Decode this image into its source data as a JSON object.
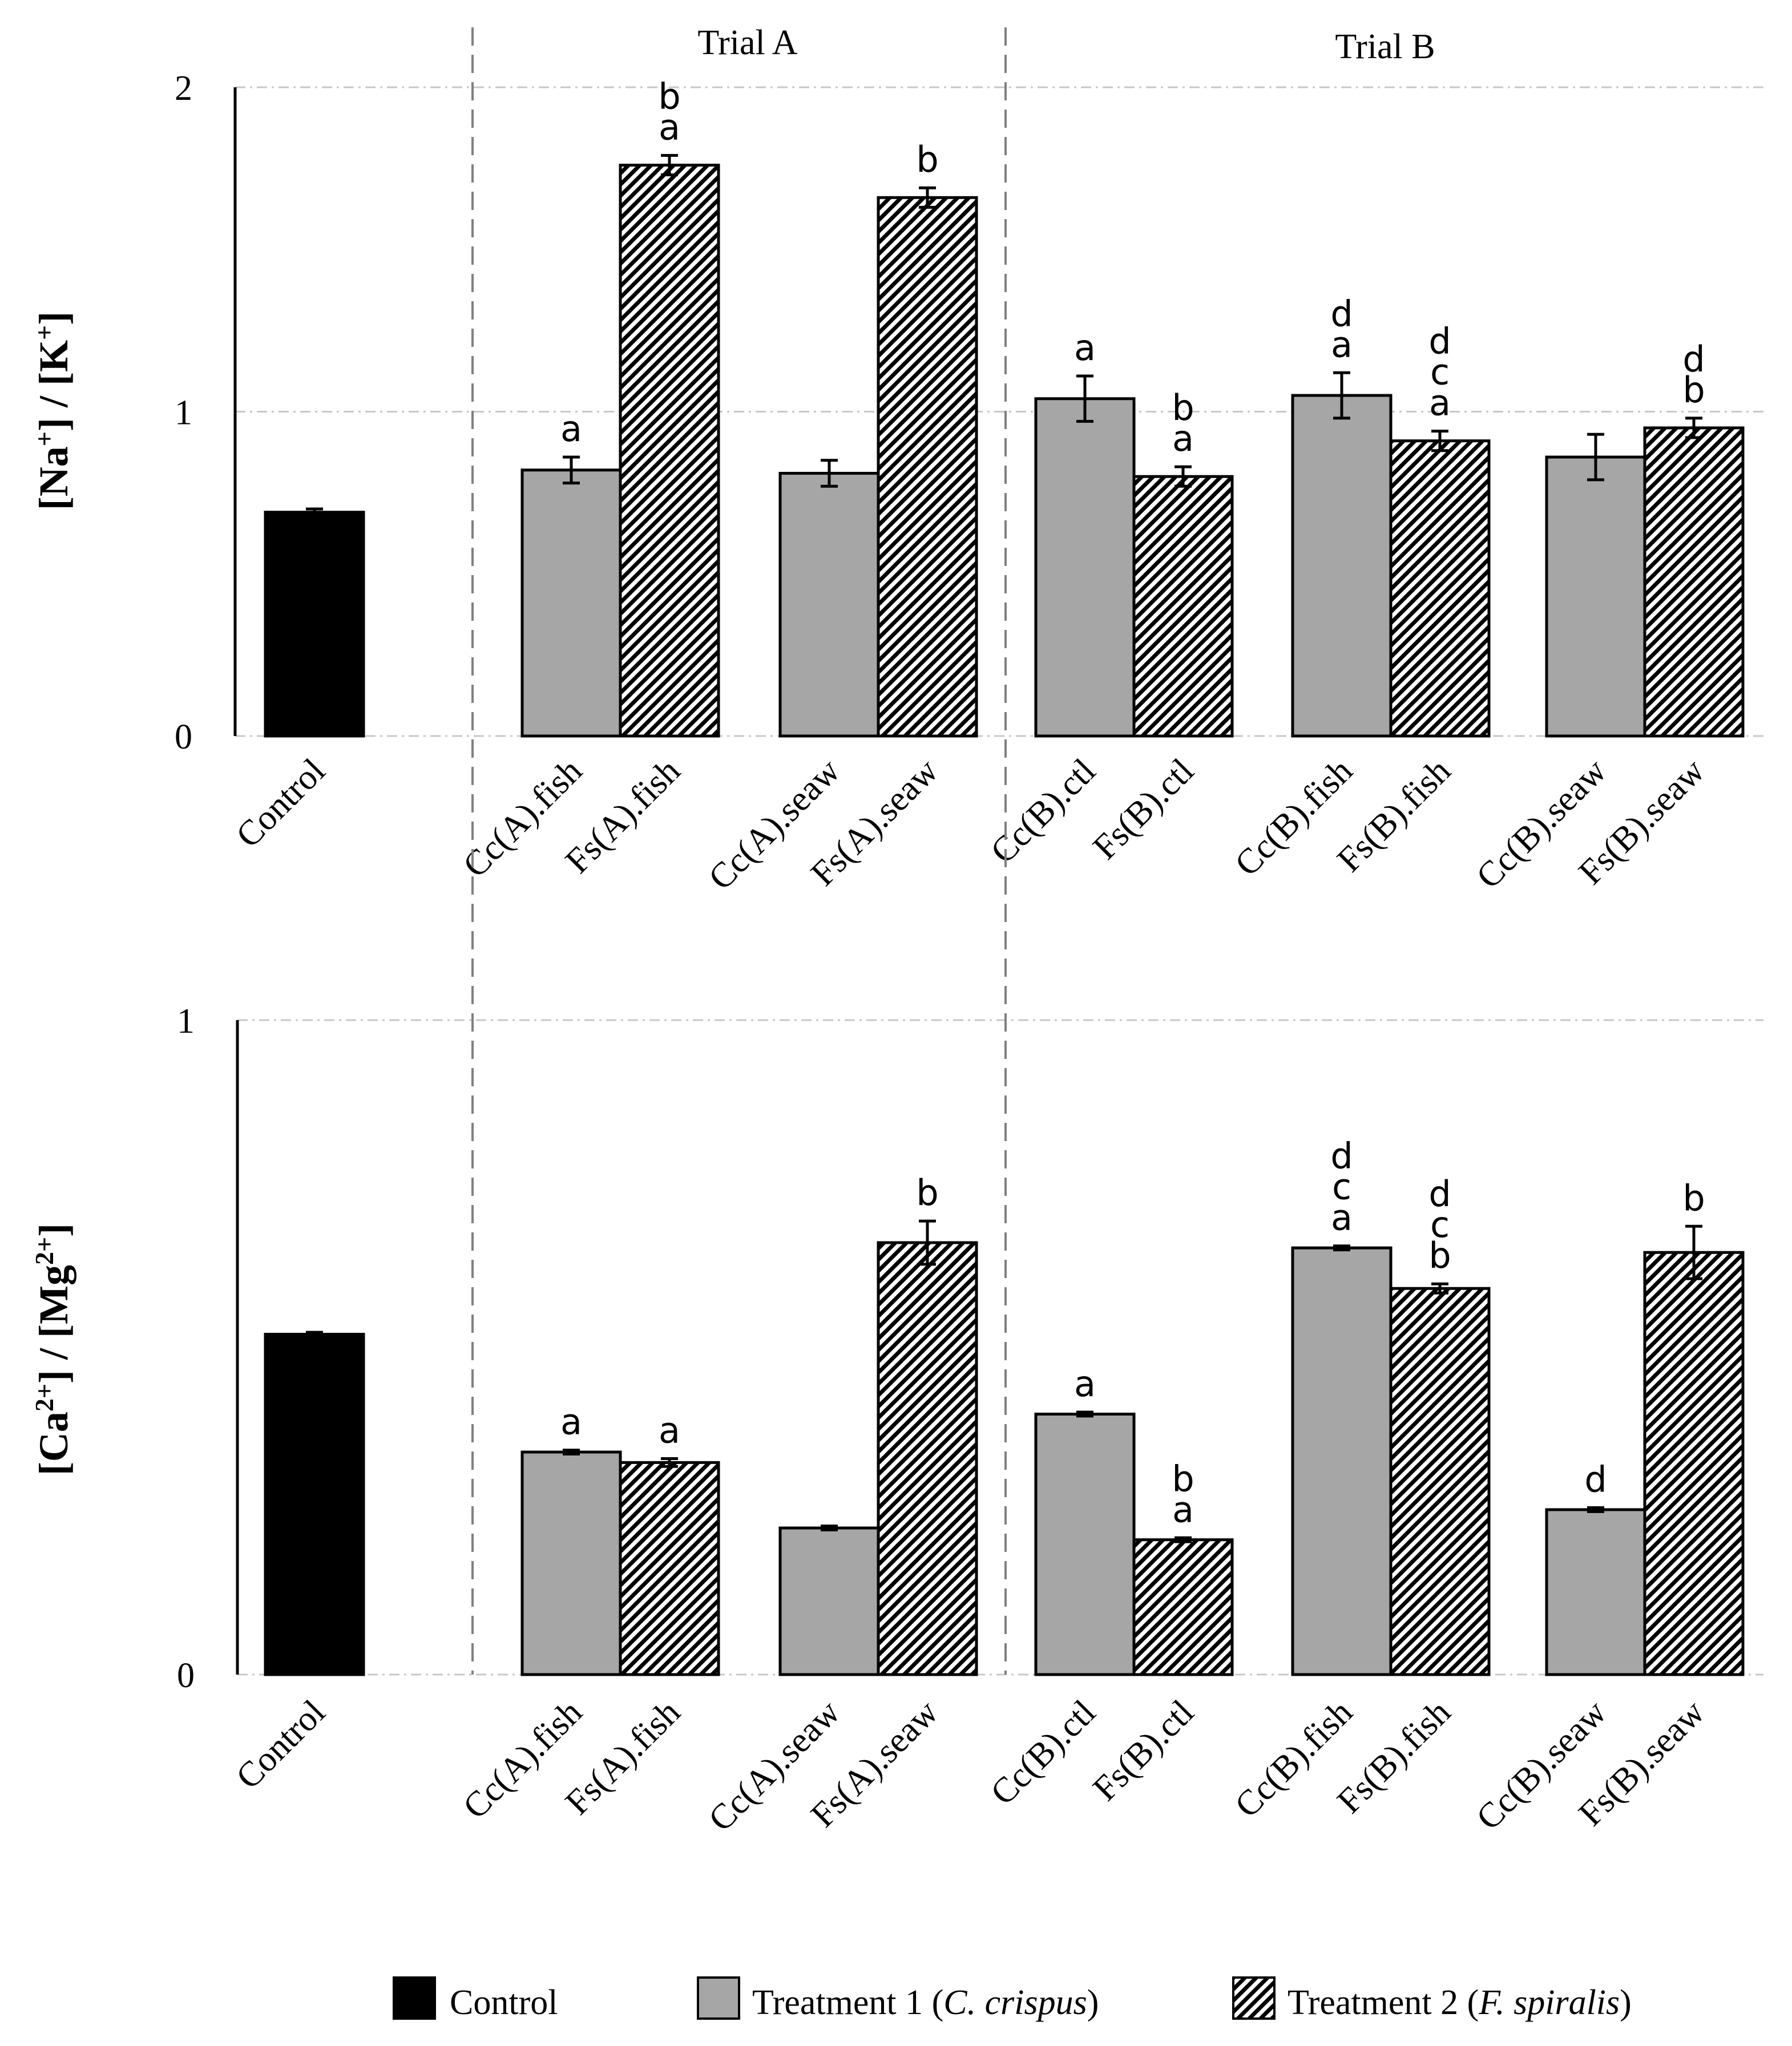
{
  "sections": [
    {
      "key": "trialA",
      "label": "Trial A"
    },
    {
      "key": "trialB",
      "label": "Trial B"
    }
  ],
  "categories": [
    "Control",
    "Cc(A).fish",
    "Fs(A).fish",
    "Cc(A).seaw",
    "Fs(A).seaw",
    "Cc(B).ctl",
    "Fs(B).ctl",
    "Cc(B).fish",
    "Fs(B).fish",
    "Cc(B).seaw",
    "Fs(B).seaw"
  ],
  "legend": [
    {
      "key": "control",
      "label": "Control"
    },
    {
      "key": "t1",
      "prefix": "Treatment 1 (",
      "italic": "C. crispus",
      "suffix": ")"
    },
    {
      "key": "t2",
      "prefix": "Treatment 2 (",
      "italic": "F. spiralis",
      "suffix": ")"
    }
  ],
  "colors": {
    "control": "#000000",
    "treatment1": "#a6a6a6",
    "treatment2_hatch": "#000000",
    "grid": "#c8c8c8",
    "divider": "#808080"
  },
  "chart_data": [
    {
      "type": "bar",
      "name": "na-k-ratio",
      "ylabel": {
        "parts": [
          {
            "t": "[Na"
          },
          {
            "t": "+",
            "sup": true
          },
          {
            "t": "] / [K"
          },
          {
            "t": "+",
            "sup": true
          },
          {
            "t": "]"
          }
        ]
      },
      "ylim": [
        0,
        2
      ],
      "yticks": [
        0,
        1,
        2
      ],
      "grid": true,
      "bars": [
        {
          "category": "Control",
          "series": "Control",
          "value": 0.69,
          "error": 0.01,
          "letters": []
        },
        {
          "category": "Cc(A).fish",
          "series": "Treatment 1 (C. crispus)",
          "value": 0.82,
          "error": 0.04,
          "letters": [
            "a"
          ]
        },
        {
          "category": "Fs(A).fish",
          "series": "Treatment 2 (F. spiralis)",
          "value": 1.76,
          "error": 0.03,
          "letters": [
            "a",
            "b"
          ]
        },
        {
          "category": "Cc(A).seaw",
          "series": "Treatment 1 (C. crispus)",
          "value": 0.81,
          "error": 0.04,
          "letters": []
        },
        {
          "category": "Fs(A).seaw",
          "series": "Treatment 2 (F. spiralis)",
          "value": 1.66,
          "error": 0.03,
          "letters": [
            "b"
          ]
        },
        {
          "category": "Cc(B).ctl",
          "series": "Treatment 1 (C. crispus)",
          "value": 1.04,
          "error": 0.07,
          "letters": [
            "a"
          ]
        },
        {
          "category": "Fs(B).ctl",
          "series": "Treatment 2 (F. spiralis)",
          "value": 0.8,
          "error": 0.03,
          "letters": [
            "a",
            "b"
          ]
        },
        {
          "category": "Cc(B).fish",
          "series": "Treatment 1 (C. crispus)",
          "value": 1.05,
          "error": 0.07,
          "letters": [
            "a",
            "d"
          ]
        },
        {
          "category": "Fs(B).fish",
          "series": "Treatment 2 (F. spiralis)",
          "value": 0.91,
          "error": 0.03,
          "letters": [
            "a",
            "c",
            "d"
          ]
        },
        {
          "category": "Cc(B).seaw",
          "series": "Treatment 1 (C. crispus)",
          "value": 0.86,
          "error": 0.07,
          "letters": []
        },
        {
          "category": "Fs(B).seaw",
          "series": "Treatment 2 (F. spiralis)",
          "value": 0.95,
          "error": 0.03,
          "letters": [
            "b",
            "d"
          ]
        }
      ]
    },
    {
      "type": "bar",
      "name": "ca-mg-ratio",
      "ylabel": {
        "parts": [
          {
            "t": "[Ca"
          },
          {
            "t": "2+",
            "sup": true
          },
          {
            "t": "] / [Mg"
          },
          {
            "t": "2+",
            "sup": true
          },
          {
            "t": "]"
          }
        ]
      },
      "ylim": [
        0,
        1
      ],
      "yticks": [
        0,
        1
      ],
      "grid": true,
      "bars": [
        {
          "category": "Control",
          "series": "Control",
          "value": 0.52,
          "error": 0.003,
          "letters": []
        },
        {
          "category": "Cc(A).fish",
          "series": "Treatment 1 (C. crispus)",
          "value": 0.34,
          "error": 0.003,
          "letters": [
            "a"
          ]
        },
        {
          "category": "Fs(A).fish",
          "series": "Treatment 2 (F. spiralis)",
          "value": 0.324,
          "error": 0.006,
          "letters": [
            "a"
          ]
        },
        {
          "category": "Cc(A).seaw",
          "series": "Treatment 1 (C. crispus)",
          "value": 0.224,
          "error": 0.003,
          "letters": []
        },
        {
          "category": "Fs(A).seaw",
          "series": "Treatment 2 (F. spiralis)",
          "value": 0.66,
          "error": 0.033,
          "letters": [
            "b"
          ]
        },
        {
          "category": "Cc(B).ctl",
          "series": "Treatment 1 (C. crispus)",
          "value": 0.398,
          "error": 0.003,
          "letters": [
            "a"
          ]
        },
        {
          "category": "Fs(B).ctl",
          "series": "Treatment 2 (F. spiralis)",
          "value": 0.206,
          "error": 0.003,
          "letters": [
            "a",
            "b"
          ]
        },
        {
          "category": "Cc(B).fish",
          "series": "Treatment 1 (C. crispus)",
          "value": 0.652,
          "error": 0.003,
          "letters": [
            "a",
            "c",
            "d"
          ]
        },
        {
          "category": "Fs(B).fish",
          "series": "Treatment 2 (F. spiralis)",
          "value": 0.59,
          "error": 0.007,
          "letters": [
            "b",
            "c",
            "d"
          ]
        },
        {
          "category": "Cc(B).seaw",
          "series": "Treatment 1 (C. crispus)",
          "value": 0.252,
          "error": 0.003,
          "letters": [
            "d"
          ]
        },
        {
          "category": "Fs(B).seaw",
          "series": "Treatment 2 (F. spiralis)",
          "value": 0.645,
          "error": 0.04,
          "letters": [
            "b"
          ]
        }
      ]
    }
  ]
}
